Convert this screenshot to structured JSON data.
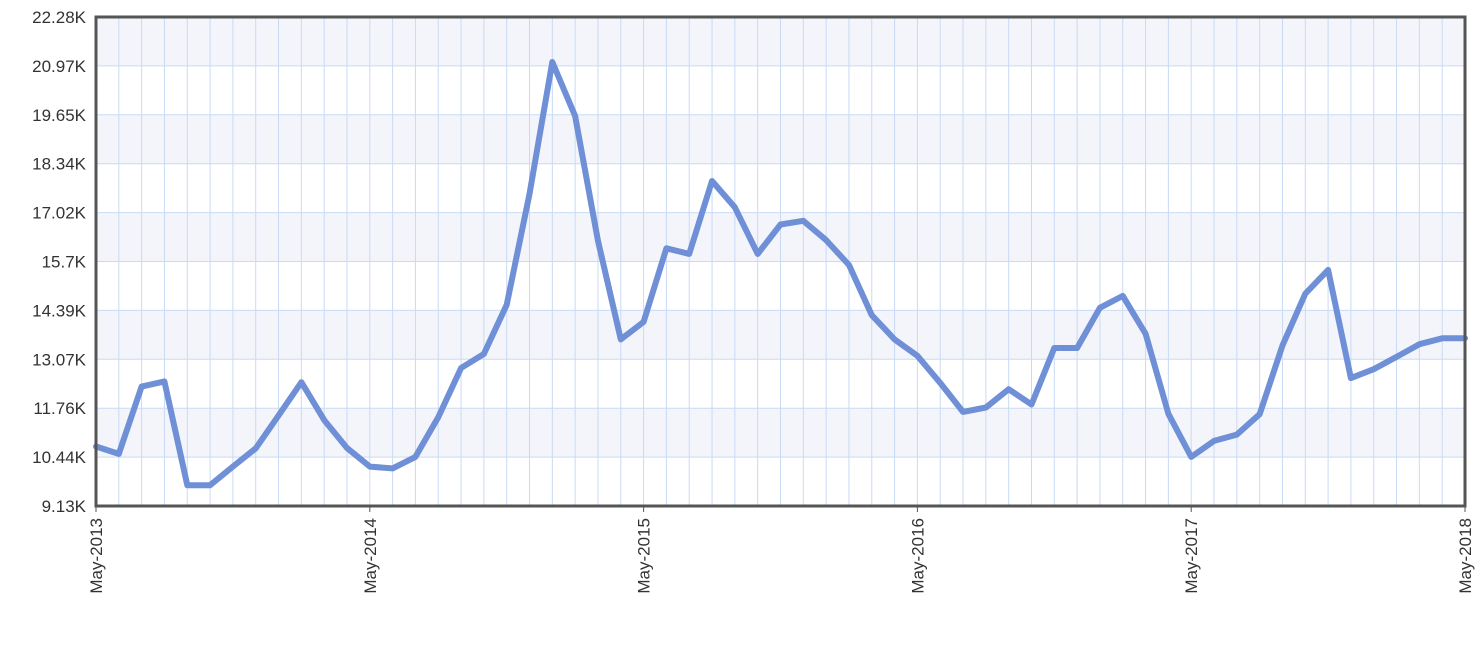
{
  "chart_data": {
    "type": "line",
    "title": "",
    "xlabel": "",
    "ylabel": "",
    "x_ticks": [
      "May-2013",
      "May-2014",
      "May-2015",
      "May-2016",
      "May-2017",
      "May-2018"
    ],
    "y_ticks": [
      "9.13K",
      "10.44K",
      "11.76K",
      "13.07K",
      "14.39K",
      "15.7K",
      "17.02K",
      "18.34K",
      "19.65K",
      "20.97K",
      "22.28K"
    ],
    "ylim": [
      9130,
      22280
    ],
    "x_range": [
      "2013-05",
      "2018-05"
    ],
    "grid": true,
    "legend": "none",
    "line_color": "#6f8fd6",
    "series": [
      {
        "x": [
          "2013-05",
          "2013-06",
          "2013-07",
          "2013-08",
          "2013-09",
          "2013-10",
          "2013-11",
          "2013-12",
          "2014-01",
          "2014-02",
          "2014-03",
          "2014-04",
          "2014-05",
          "2014-06",
          "2014-07",
          "2014-08",
          "2014-09",
          "2014-10",
          "2014-11",
          "2014-12",
          "2015-01",
          "2015-02",
          "2015-03",
          "2015-04",
          "2015-05",
          "2015-06",
          "2015-07",
          "2015-08",
          "2015-09",
          "2015-10",
          "2015-11",
          "2015-12",
          "2016-01",
          "2016-02",
          "2016-03",
          "2016-04",
          "2016-05",
          "2016-06",
          "2016-07",
          "2016-08",
          "2016-09",
          "2016-10",
          "2016-11",
          "2016-12",
          "2017-01",
          "2017-02",
          "2017-03",
          "2017-04",
          "2017-05",
          "2017-06",
          "2017-07",
          "2017-08",
          "2017-09",
          "2017-10",
          "2017-11",
          "2017-12",
          "2018-01",
          "2018-02",
          "2018-03",
          "2018-04",
          "2018-05"
        ],
        "values": [
          10730,
          10530,
          12340,
          12480,
          9690,
          9690,
          10190,
          10680,
          11560,
          12460,
          11440,
          10690,
          10190,
          10140,
          10450,
          11520,
          12840,
          13220,
          14540,
          17520,
          21070,
          19620,
          16260,
          13610,
          14080,
          16060,
          15910,
          17870,
          17160,
          15910,
          16700,
          16800,
          16280,
          15610,
          14260,
          13610,
          13170,
          12440,
          11660,
          11780,
          12270,
          11860,
          13380,
          13380,
          14460,
          14780,
          13760,
          11610,
          10450,
          10880,
          11050,
          11600,
          13450,
          14840,
          15480,
          12570,
          12810,
          13140,
          13480,
          13640,
          13640
        ]
      }
    ]
  }
}
